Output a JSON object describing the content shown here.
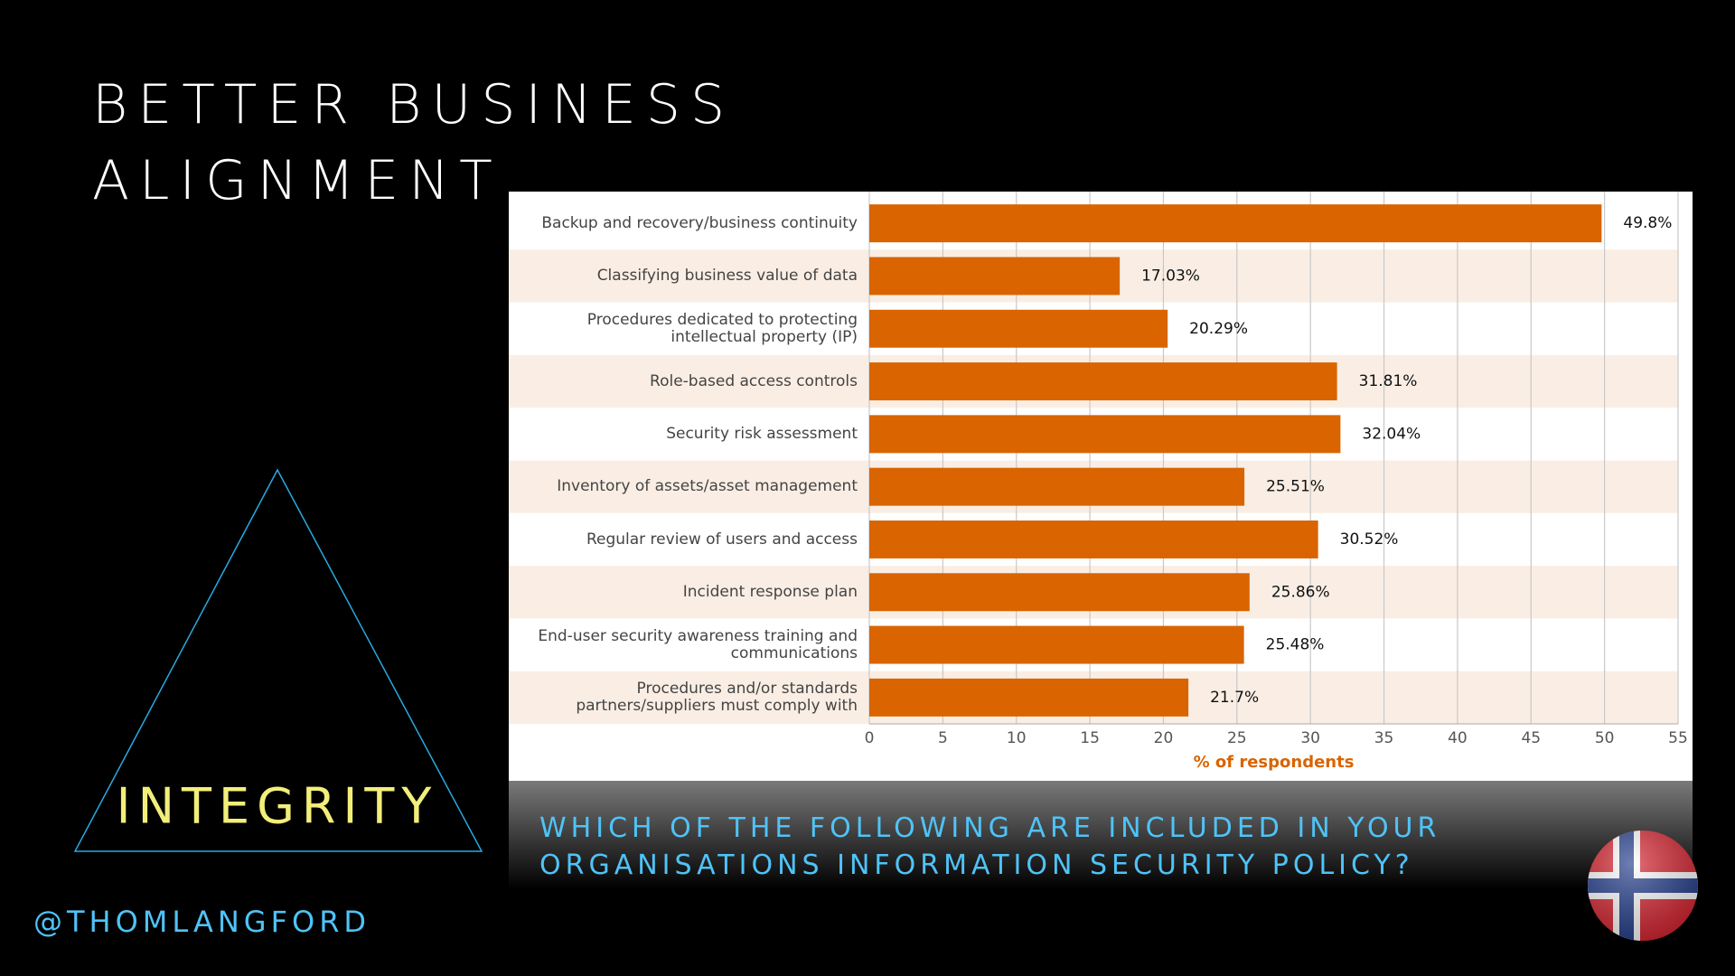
{
  "slide": {
    "title_line1": "BETTER BUSINESS",
    "title_line2": "ALIGNMENT",
    "triangle_label": "INTEGRITY",
    "handle": "@THOMLANGFORD",
    "question_line1": "WHICH OF THE FOLLOWING ARE INCLUDED IN YOUR",
    "question_line2": "ORGANISATIONS INFORMATION SECURITY POLICY?"
  },
  "chart_data": {
    "type": "barh",
    "categories": [
      "Backup and recovery/business continuity",
      "Classifying business value of data",
      "Procedures dedicated to protecting intellectual property (IP)",
      "Role-based access controls",
      "Security risk assessment",
      "Inventory of assets/asset management",
      "Regular review of users and access",
      "Incident response plan",
      "End-user security awareness training and communications",
      "Procedures and/or standards partners/suppliers must comply with"
    ],
    "values": [
      49.8,
      17.03,
      20.29,
      31.81,
      32.04,
      25.51,
      30.52,
      25.86,
      25.48,
      21.7
    ],
    "value_labels": [
      "49.8%",
      "17.03%",
      "20.29%",
      "31.81%",
      "32.04%",
      "25.51%",
      "30.52%",
      "25.86%",
      "25.48%",
      "21.7%"
    ],
    "color": "#d96400",
    "xlabel": "% of respondents",
    "xlim": [
      0,
      55
    ],
    "xticks": [
      0,
      5,
      10,
      15,
      20,
      25,
      30,
      35,
      40,
      45,
      50,
      55
    ],
    "grid": true
  }
}
